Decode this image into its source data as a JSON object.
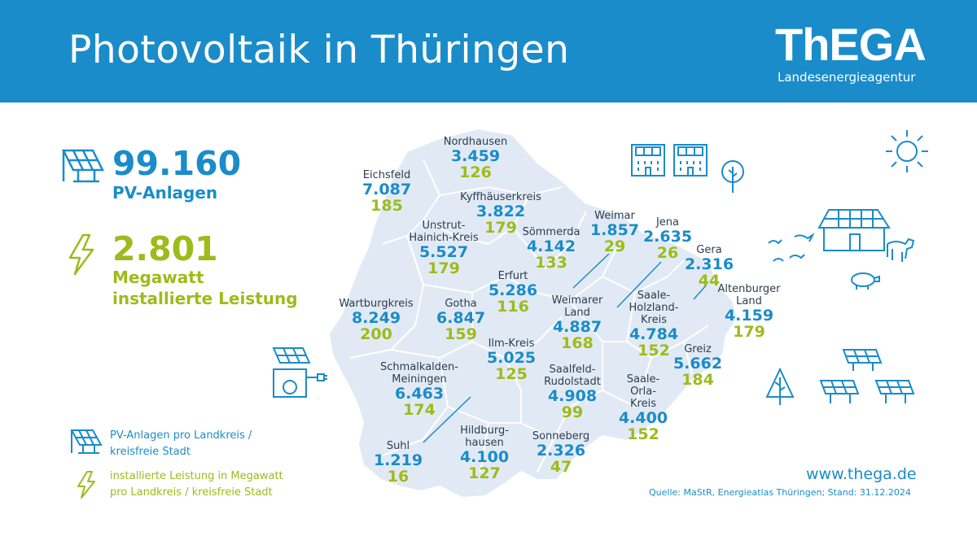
{
  "header": {
    "title": "Photovoltaik in Thüringen",
    "logo_text": "ThEGA",
    "logo_subtitle": "Landesenergieagentur"
  },
  "stats": {
    "pv_count": "99.160",
    "pv_label": "PV-Anlagen",
    "mw_value": "2.801",
    "mw_label_1": "Megawatt",
    "mw_label_2": "installierte Leistung"
  },
  "legend": {
    "pv_line_1": "PV-Anlagen pro Landkreis /",
    "pv_line_2": "kreisfreie Stadt",
    "mw_line_1": "installierte Leistung in Megawatt",
    "mw_line_2": "pro Landkreis / kreisfreie Stadt"
  },
  "regions": [
    {
      "name_lines": [
        "Nordhausen"
      ],
      "count": "3.459",
      "mw": "126"
    },
    {
      "name_lines": [
        "Eichsfeld"
      ],
      "count": "7.087",
      "mw": "185"
    },
    {
      "name_lines": [
        "Kyffhäuserkreis"
      ],
      "count": "3.822",
      "mw": "179"
    },
    {
      "name_lines": [
        "Unstrut-",
        "Hainich-Kreis"
      ],
      "count": "5.527",
      "mw": "179"
    },
    {
      "name_lines": [
        "Sömmerda"
      ],
      "count": "4.142",
      "mw": "133"
    },
    {
      "name_lines": [
        "Weimar"
      ],
      "count": "1.857",
      "mw": "29"
    },
    {
      "name_lines": [
        "Jena"
      ],
      "count": "2.635",
      "mw": "26"
    },
    {
      "name_lines": [
        "Gera"
      ],
      "count": "2.316",
      "mw": "44"
    },
    {
      "name_lines": [
        "Erfurt"
      ],
      "count": "5.286",
      "mw": "116"
    },
    {
      "name_lines": [
        "Altenburger",
        "Land"
      ],
      "count": "4.159",
      "mw": "179"
    },
    {
      "name_lines": [
        "Wartburgkreis"
      ],
      "count": "8.249",
      "mw": "200"
    },
    {
      "name_lines": [
        "Gotha"
      ],
      "count": "6.847",
      "mw": "159"
    },
    {
      "name_lines": [
        "Weimarer",
        "Land"
      ],
      "count": "4.887",
      "mw": "168"
    },
    {
      "name_lines": [
        "Saale-",
        "Holzland-",
        "Kreis"
      ],
      "count": "4.784",
      "mw": "152"
    },
    {
      "name_lines": [
        "Ilm-Kreis"
      ],
      "count": "5.025",
      "mw": "125"
    },
    {
      "name_lines": [
        "Greiz"
      ],
      "count": "5.662",
      "mw": "184"
    },
    {
      "name_lines": [
        "Schmalkalden-",
        "Meiningen"
      ],
      "count": "6.463",
      "mw": "174"
    },
    {
      "name_lines": [
        "Saalfeld-",
        "Rudolstadt"
      ],
      "count": "4.908",
      "mw": "99"
    },
    {
      "name_lines": [
        "Saale-",
        "Orla-",
        "Kreis"
      ],
      "count": "4.400",
      "mw": "152"
    },
    {
      "name_lines": [
        "Hildburg-",
        "hausen"
      ],
      "count": "4.100",
      "mw": "127"
    },
    {
      "name_lines": [
        "Sonneberg"
      ],
      "count": "2.326",
      "mw": "47"
    },
    {
      "name_lines": [
        "Suhl"
      ],
      "count": "1.219",
      "mw": "16"
    }
  ],
  "footer": {
    "website": "www.thega.de",
    "source": "Quelle: MaStR, Energieatlas Thüringen; Stand: 31.12.2024"
  },
  "colors": {
    "brand_blue": "#1a8cc9",
    "brand_green": "#9dbb1a",
    "map_fill": "#e1eaf4",
    "text_dark": "#2b3d4f"
  }
}
